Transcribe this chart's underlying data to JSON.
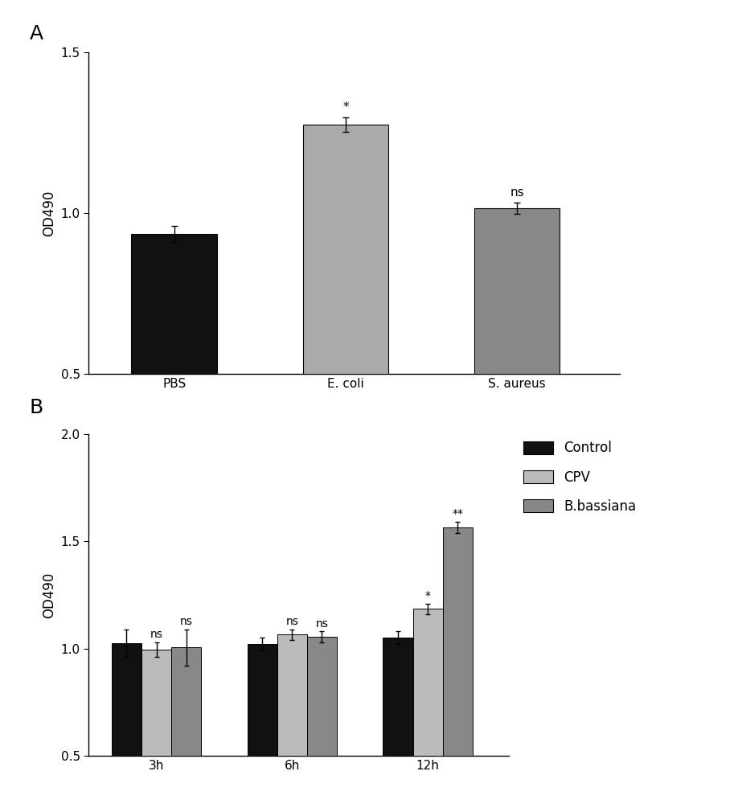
{
  "panel_A": {
    "categories": [
      "PBS",
      "E. coli",
      "S. aureus"
    ],
    "values": [
      0.935,
      1.275,
      1.015
    ],
    "errors": [
      0.025,
      0.022,
      0.018
    ],
    "colors": [
      "#111111",
      "#aaaaaa",
      "#888888"
    ],
    "annotations": [
      "",
      "*",
      "ns"
    ],
    "ylabel": "OD490",
    "ylim": [
      0.5,
      1.5
    ],
    "label": "A"
  },
  "panel_B": {
    "groups": [
      "3h",
      "6h",
      "12h"
    ],
    "series": [
      "Control",
      "CPV",
      "B.bassiana"
    ],
    "values": [
      [
        1.025,
        0.995,
        1.005
      ],
      [
        1.02,
        1.065,
        1.055
      ],
      [
        1.05,
        1.185,
        1.565
      ]
    ],
    "errors": [
      [
        0.065,
        0.035,
        0.085
      ],
      [
        0.03,
        0.025,
        0.025
      ],
      [
        0.03,
        0.025,
        0.028
      ]
    ],
    "colors": [
      "#111111",
      "#bbbbbb",
      "#888888"
    ],
    "annotations": [
      [
        "",
        "ns",
        "ns"
      ],
      [
        "",
        "ns",
        "ns"
      ],
      [
        "",
        "*",
        "**"
      ]
    ],
    "ylabel": "OD490",
    "ylim": [
      0.5,
      2.0
    ],
    "label": "B",
    "legend_labels": [
      "Control",
      "CPV",
      "B.bassiana"
    ],
    "legend_colors": [
      "#111111",
      "#bbbbbb",
      "#888888"
    ]
  },
  "background_color": "#ffffff",
  "bar_width": 0.22,
  "capsize": 3,
  "fontsize_label": 12,
  "fontsize_tick": 11,
  "fontsize_annot": 11,
  "fontsize_panel": 18
}
